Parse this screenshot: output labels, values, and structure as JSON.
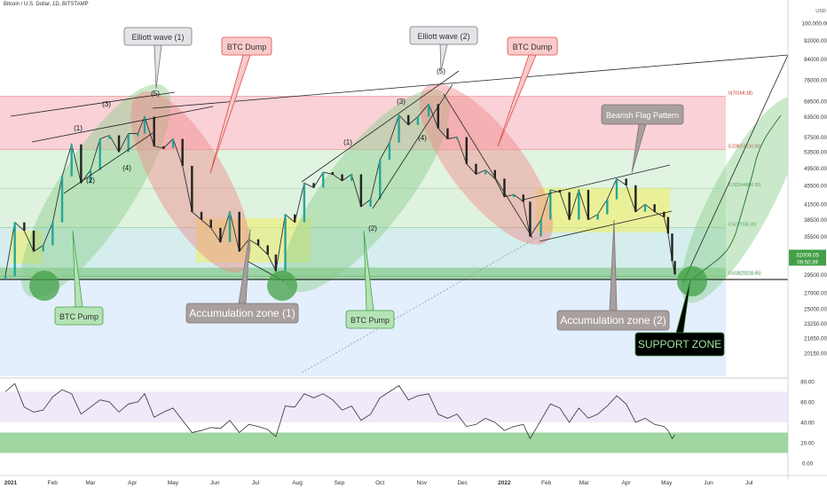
{
  "header": {
    "title": "Bitcoin / U.S. Dollar, 1D, BITSTAMP"
  },
  "colors": {
    "candle_up": "#26a69a",
    "candle_down": "#222222",
    "fib_red": "#f7c6cc",
    "fib_green": "#d9f0d9",
    "fib_teal": "#cbe9e9",
    "fib_blue": "#dcebfb",
    "channel_green": "#8ccf8c",
    "dump_red": "#ef8a8a",
    "accum_yellow": "#f2ef5c",
    "rsi_band": "#ebe4f7",
    "rsi_green": "#8fcf8f",
    "price_badge": "#43a047"
  },
  "chart_data": {
    "type": "line",
    "title": "Bitcoin / U.S. Dollar, 1D, BITSTAMP",
    "xlabel": "",
    "ylabel": "",
    "y_scale": "log",
    "currency": "USD",
    "ylim": [
      18000,
      110000
    ],
    "grid": false,
    "x_ticks": [
      "2021",
      "Feb",
      "Mar",
      "Apr",
      "May",
      "Jun",
      "Jul",
      "Aug",
      "Sep",
      "Oct",
      "Nov",
      "Dec",
      "2022",
      "Feb",
      "Mar",
      "Apr",
      "May",
      "Jun",
      "Jul"
    ],
    "y_ticks": [
      "100,000.00",
      "92000.00",
      "84000.00",
      "76000.00",
      "68500.00",
      "63500.00",
      "57500.00",
      "53500.00",
      "49500.00",
      "45500.00",
      "41500.00",
      "38500.00",
      "35500.00",
      "29500.00",
      "27000.00",
      "25000.00",
      "23250.00",
      "21650.00",
      "20150.00"
    ],
    "series": [
      {
        "name": "",
        "x": [
          "2021-01-01",
          "2021-01-08",
          "2021-01-15",
          "2021-01-22",
          "2021-01-29",
          "2021-02-05",
          "2021-02-12",
          "2021-02-19",
          "2021-02-26",
          "2021-03-05",
          "2021-03-12",
          "2021-03-19",
          "2021-03-26",
          "2021-04-02",
          "2021-04-09",
          "2021-04-14",
          "2021-04-21",
          "2021-04-28",
          "2021-05-05",
          "2021-05-12",
          "2021-05-19",
          "2021-05-26",
          "2021-06-02",
          "2021-06-09",
          "2021-06-16",
          "2021-06-23",
          "2021-06-30",
          "2021-07-07",
          "2021-07-14",
          "2021-07-20",
          "2021-07-27",
          "2021-08-03",
          "2021-08-10",
          "2021-08-17",
          "2021-08-24",
          "2021-08-31",
          "2021-09-07",
          "2021-09-14",
          "2021-09-21",
          "2021-09-28",
          "2021-10-05",
          "2021-10-12",
          "2021-10-19",
          "2021-10-26",
          "2021-11-02",
          "2021-11-10",
          "2021-11-17",
          "2021-11-24",
          "2021-12-01",
          "2021-12-08",
          "2021-12-15",
          "2021-12-22",
          "2021-12-29",
          "2022-01-05",
          "2022-01-12",
          "2022-01-19",
          "2022-01-24",
          "2022-02-01",
          "2022-02-08",
          "2022-02-15",
          "2022-02-22",
          "2022-03-01",
          "2022-03-08",
          "2022-03-15",
          "2022-03-22",
          "2022-03-29",
          "2022-04-05",
          "2022-04-12",
          "2022-04-19",
          "2022-04-26",
          "2022-05-03",
          "2022-05-06",
          "2022-05-09",
          "2022-05-11"
        ],
        "values": [
          29300,
          38000,
          36500,
          33000,
          34000,
          38000,
          47500,
          55500,
          46000,
          49000,
          57000,
          58000,
          53500,
          58500,
          58500,
          63500,
          55000,
          54500,
          57000,
          50000,
          40000,
          38500,
          37000,
          34500,
          40000,
          33000,
          35000,
          34000,
          32500,
          30000,
          39500,
          38000,
          46000,
          45000,
          48500,
          48000,
          46500,
          48000,
          41000,
          42500,
          51500,
          56000,
          64000,
          61000,
          63500,
          67500,
          60000,
          57000,
          57500,
          50500,
          48000,
          49000,
          47000,
          43000,
          43500,
          42000,
          35500,
          38500,
          44500,
          44000,
          38500,
          44500,
          38500,
          39500,
          42500,
          47000,
          45500,
          40000,
          41500,
          40000,
          39000,
          36000,
          31500,
          29500
        ]
      }
    ],
    "fib_levels": [
      {
        "label": "0(70168.18)",
        "value": 70168.18
      },
      {
        "label": "0.236(54130.88)",
        "value": 54130.88
      },
      {
        "label": "0.382(44856.95)",
        "value": 44856.95
      },
      {
        "label": "0.5(37058.30)",
        "value": 37058.3
      },
      {
        "label": "0.618(29218.65)",
        "value": 29218.65
      }
    ],
    "support_line": 28800,
    "current_price": {
      "price": "32009.05",
      "countdown": "09:50:39"
    },
    "annotations": [
      {
        "label": "Elliott wave (1)"
      },
      {
        "label": "BTC Dump"
      },
      {
        "label": "Elliott wave (2)"
      },
      {
        "label": "BTC Dump"
      },
      {
        "label": "Bearish Flag Pattern"
      },
      {
        "label": "BTC Pump"
      },
      {
        "label": "Accumulation zone (1)"
      },
      {
        "label": "BTC Pump"
      },
      {
        "label": "Accumulation zone (2)"
      },
      {
        "label": "SUPPORT ZONE"
      }
    ],
    "wave_labels": [
      "(1)",
      "(2)",
      "(3)",
      "(4)",
      "(5)",
      "(1)",
      "(2)",
      "(3)",
      "(4)",
      "(5)"
    ],
    "rsi": {
      "y_ticks": [
        "80.00",
        "60.00",
        "40.00",
        "20.00",
        "0.00"
      ],
      "band": [
        40,
        70
      ],
      "green_band": [
        10,
        30
      ],
      "values": [
        70,
        78,
        55,
        50,
        52,
        65,
        72,
        68,
        48,
        55,
        62,
        60,
        50,
        58,
        60,
        68,
        45,
        50,
        54,
        42,
        30,
        32,
        35,
        34,
        42,
        30,
        38,
        36,
        33,
        26,
        56,
        55,
        68,
        64,
        68,
        62,
        52,
        56,
        42,
        48,
        64,
        70,
        76,
        62,
        66,
        68,
        48,
        44,
        48,
        36,
        38,
        44,
        40,
        32,
        36,
        38,
        24,
        42,
        58,
        54,
        40,
        54,
        44,
        48,
        56,
        66,
        58,
        40,
        44,
        38,
        36,
        32,
        24,
        28
      ]
    }
  }
}
